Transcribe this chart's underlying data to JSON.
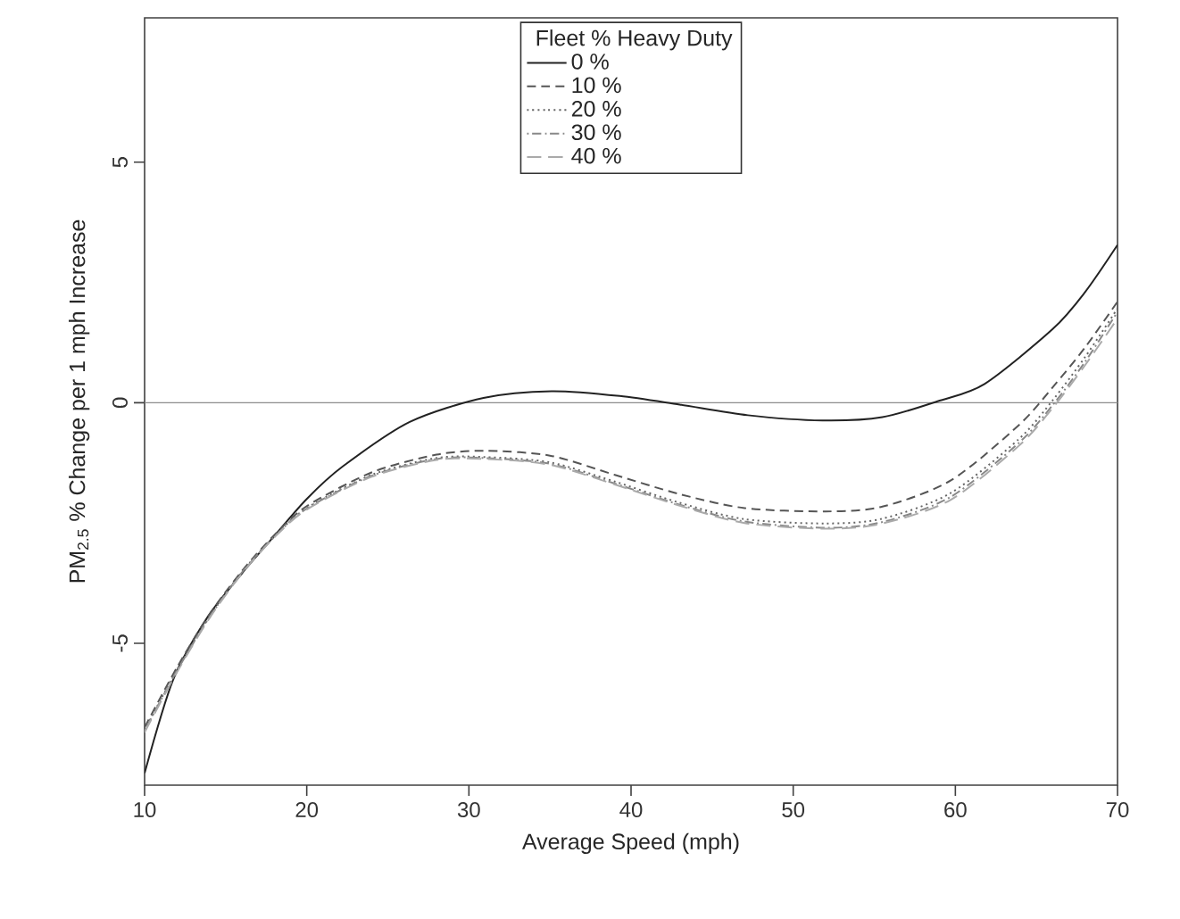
{
  "chart_data": {
    "type": "line",
    "xlabel": "Average Speed (mph)",
    "ylabel": "PM$_{2.5}$ % Change per 1 mph Increase",
    "legend_title": "Fleet % Heavy Duty",
    "legend": "top",
    "xlim": [
      10,
      70
    ],
    "ylim": [
      -7.95,
      8
    ],
    "xticks": [
      10,
      20,
      30,
      40,
      50,
      60,
      70
    ],
    "yticks": [
      -5,
      0,
      5
    ],
    "grid": false,
    "marker": "none",
    "ref_lines": [
      {
        "axis": "y",
        "value": 0,
        "color": "#8c8c8c"
      }
    ],
    "series": [
      {
        "name": "0 %",
        "color": "#222222",
        "line_style": "solid",
        "x": [
          10,
          11.75,
          13.84,
          16,
          18,
          20,
          22.2,
          26.35,
          30.9,
          35.1,
          39.3,
          43,
          47.2,
          51.8,
          55.5,
          58.9,
          61.8,
          66,
          68,
          70
        ],
        "values": [
          -7.7,
          -5.77,
          -4.48,
          -3.55,
          -2.77,
          -2.0,
          -1.33,
          -0.4,
          0.1,
          0.24,
          0.14,
          -0.04,
          -0.26,
          -0.37,
          -0.3,
          0.03,
          0.39,
          1.53,
          2.3,
          3.28
        ]
      },
      {
        "name": "10 %",
        "color": "#555555",
        "line_style": "dashed",
        "x": [
          10,
          12,
          14,
          16,
          18,
          20,
          24,
          28,
          31,
          35,
          39,
          43,
          47,
          52,
          55.5,
          59.7,
          63.9,
          66,
          68,
          70
        ],
        "values": [
          -6.75,
          -5.5,
          -4.4,
          -3.5,
          -2.75,
          -2.15,
          -1.45,
          -1.08,
          -1.0,
          -1.1,
          -1.5,
          -1.9,
          -2.19,
          -2.26,
          -2.16,
          -1.62,
          -0.47,
          0.32,
          1.15,
          2.1
        ]
      },
      {
        "name": "20 %",
        "color": "#666666",
        "line_style": "dotted",
        "x": [
          10,
          12,
          14,
          16,
          18,
          20,
          24,
          28,
          31,
          35,
          39,
          43,
          47,
          52,
          55.5,
          59.7,
          63.9,
          66,
          68,
          70
        ],
        "values": [
          -6.8,
          -5.55,
          -4.45,
          -3.52,
          -2.78,
          -2.19,
          -1.5,
          -1.15,
          -1.13,
          -1.24,
          -1.64,
          -2.08,
          -2.42,
          -2.51,
          -2.41,
          -1.88,
          -0.76,
          0.05,
          0.95,
          1.96
        ]
      },
      {
        "name": "30 %",
        "color": "#888888",
        "line_style": "dashdot",
        "x": [
          10,
          12,
          14,
          16,
          18,
          20,
          24,
          28,
          31,
          35,
          39,
          43,
          47,
          52,
          55.5,
          59.7,
          63.9,
          66,
          68,
          70
        ],
        "values": [
          -6.82,
          -5.57,
          -4.46,
          -3.53,
          -2.79,
          -2.2,
          -1.52,
          -1.17,
          -1.15,
          -1.27,
          -1.68,
          -2.12,
          -2.47,
          -2.6,
          -2.48,
          -1.96,
          -0.84,
          -0.05,
          0.85,
          1.89
        ]
      },
      {
        "name": "40 %",
        "color": "#aaaaaa",
        "line_style": "longdash",
        "x": [
          10,
          12,
          14,
          16,
          18,
          20,
          24,
          28,
          31,
          35,
          39,
          43,
          47,
          52,
          55.5,
          59.7,
          63.9,
          66,
          68,
          70
        ],
        "values": [
          -6.85,
          -5.6,
          -4.48,
          -3.55,
          -2.8,
          -2.22,
          -1.54,
          -1.19,
          -1.17,
          -1.29,
          -1.7,
          -2.14,
          -2.5,
          -2.62,
          -2.51,
          -2.02,
          -0.9,
          -0.11,
          0.78,
          1.75
        ]
      }
    ]
  }
}
